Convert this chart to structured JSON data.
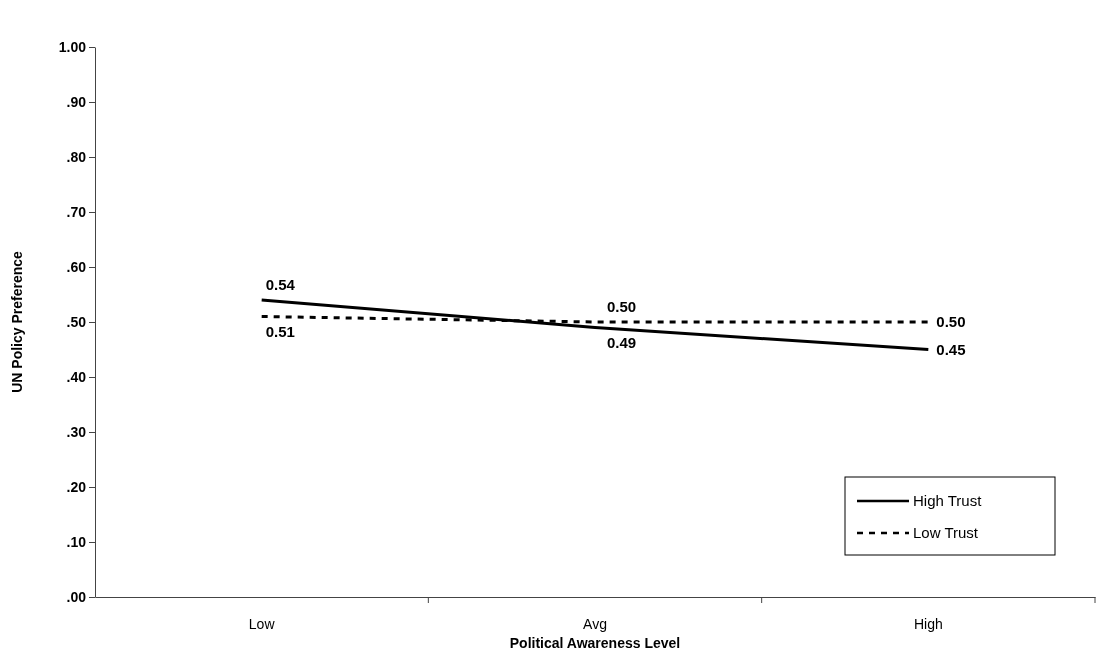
{
  "chart_data": {
    "type": "line",
    "xlabel": "Political Awareness Level",
    "ylabel": "UN Policy Preference",
    "categories": [
      "Low",
      "Avg",
      "High"
    ],
    "series": [
      {
        "name": "High Trust",
        "color": "#000000",
        "line_style": "solid",
        "values": [
          0.54,
          0.49,
          0.45
        ],
        "value_labels": [
          "0.54",
          "0.49",
          "0.45"
        ]
      },
      {
        "name": "Low Trust",
        "color": "#000000",
        "line_style": "dashed",
        "values": [
          0.51,
          0.5,
          0.5
        ],
        "value_labels": [
          "0.51",
          "0.50",
          "0.50"
        ]
      }
    ],
    "ylim": [
      0,
      1
    ],
    "yticks": [
      {
        "value": 0,
        "label": ".00"
      },
      {
        "value": 0.1,
        "label": ".10"
      },
      {
        "value": 0.2,
        "label": ".20"
      },
      {
        "value": 0.3,
        "label": ".30"
      },
      {
        "value": 0.4,
        "label": ".40"
      },
      {
        "value": 0.5,
        "label": ".50"
      },
      {
        "value": 0.6,
        "label": ".60"
      },
      {
        "value": 0.7,
        "label": ".70"
      },
      {
        "value": 0.8,
        "label": ".80"
      },
      {
        "value": 0.9,
        "label": ".90"
      },
      {
        "value": 1,
        "label": "1.00"
      }
    ],
    "grid": false,
    "legend": "bottom right",
    "marker": "none"
  }
}
